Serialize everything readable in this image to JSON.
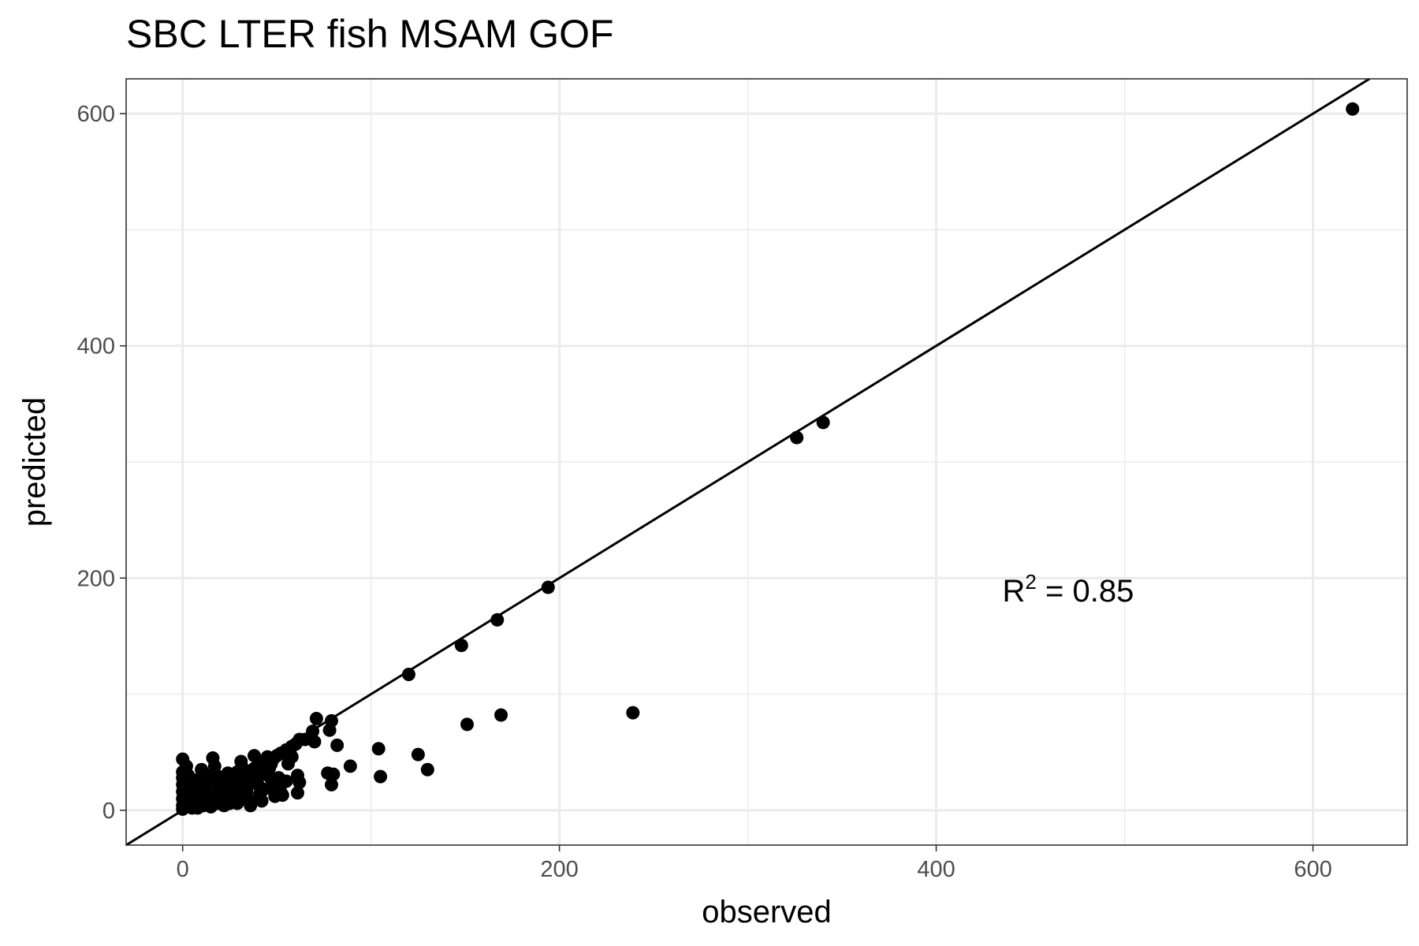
{
  "chart_data": {
    "type": "scatter",
    "title": "SBC LTER fish MSAM GOF",
    "xlabel": "observed",
    "ylabel": "predicted",
    "xlim": [
      -30,
      650
    ],
    "ylim": [
      -30,
      630
    ],
    "xticks": [
      0,
      200,
      400,
      600
    ],
    "yticks": [
      0,
      200,
      400,
      600
    ],
    "xtick_labels": [
      "0",
      "200",
      "400",
      "600"
    ],
    "ytick_labels": [
      "0",
      "200",
      "400",
      "600"
    ],
    "minor_grid_x": [
      100,
      300,
      500
    ],
    "minor_grid_y": [
      100,
      300,
      500
    ],
    "grid": true,
    "reference_line": {
      "type": "identity",
      "intercept": 0,
      "slope": 1
    },
    "annotation": {
      "text_base": "R",
      "superscript": "2",
      "text_rest": " = 0.85",
      "x": 500,
      "y": 190
    },
    "colors": {
      "points": "#000000",
      "grid": "#ebebeb",
      "line": "#000000"
    },
    "points": [
      [
        621,
        604
      ],
      [
        340,
        334
      ],
      [
        326,
        321
      ],
      [
        194,
        192
      ],
      [
        167,
        164
      ],
      [
        148,
        142
      ],
      [
        120,
        117
      ],
      [
        239,
        84
      ],
      [
        169,
        82
      ],
      [
        151,
        74
      ],
      [
        104,
        53
      ],
      [
        125,
        48
      ],
      [
        130,
        35
      ],
      [
        105,
        29
      ],
      [
        89,
        38
      ],
      [
        82,
        56
      ],
      [
        79,
        77
      ],
      [
        78,
        69
      ],
      [
        71,
        79
      ],
      [
        69,
        68
      ],
      [
        70,
        59
      ],
      [
        65,
        61
      ],
      [
        62,
        61
      ],
      [
        60,
        57
      ],
      [
        58,
        55
      ],
      [
        55,
        52
      ],
      [
        52,
        49
      ],
      [
        50,
        47
      ],
      [
        48,
        44
      ],
      [
        45,
        42
      ],
      [
        42,
        40
      ],
      [
        40,
        38
      ],
      [
        38,
        36
      ],
      [
        35,
        33
      ],
      [
        32,
        30
      ],
      [
        30,
        28
      ],
      [
        27,
        26
      ],
      [
        25,
        24
      ],
      [
        22,
        21
      ],
      [
        20,
        19
      ],
      [
        17,
        16
      ],
      [
        15,
        14
      ],
      [
        12,
        12
      ],
      [
        10,
        10
      ],
      [
        8,
        8
      ],
      [
        5,
        5
      ],
      [
        3,
        3
      ],
      [
        0,
        44
      ],
      [
        0,
        33
      ],
      [
        0,
        28
      ],
      [
        0,
        22
      ],
      [
        0,
        16
      ],
      [
        0,
        10
      ],
      [
        0,
        4
      ],
      [
        0,
        1
      ],
      [
        2,
        38
      ],
      [
        3,
        30
      ],
      [
        4,
        25
      ],
      [
        5,
        18
      ],
      [
        6,
        12
      ],
      [
        7,
        6
      ],
      [
        8,
        2
      ],
      [
        10,
        35
      ],
      [
        11,
        28
      ],
      [
        12,
        20
      ],
      [
        13,
        14
      ],
      [
        14,
        8
      ],
      [
        15,
        3
      ],
      [
        16,
        45
      ],
      [
        17,
        38
      ],
      [
        18,
        30
      ],
      [
        19,
        22
      ],
      [
        20,
        15
      ],
      [
        21,
        9
      ],
      [
        22,
        4
      ],
      [
        24,
        32
      ],
      [
        26,
        25
      ],
      [
        27,
        18
      ],
      [
        28,
        11
      ],
      [
        29,
        6
      ],
      [
        31,
        42
      ],
      [
        32,
        36
      ],
      [
        33,
        24
      ],
      [
        34,
        16
      ],
      [
        35,
        9
      ],
      [
        36,
        4
      ],
      [
        38,
        47
      ],
      [
        39,
        32
      ],
      [
        40,
        22
      ],
      [
        41,
        14
      ],
      [
        42,
        8
      ],
      [
        45,
        46
      ],
      [
        46,
        36
      ],
      [
        47,
        27
      ],
      [
        48,
        18
      ],
      [
        49,
        12
      ],
      [
        52,
        16
      ],
      [
        53,
        13
      ],
      [
        55,
        25
      ],
      [
        58,
        46
      ],
      [
        61,
        30
      ],
      [
        61,
        15
      ],
      [
        62,
        24
      ],
      [
        79,
        22
      ],
      [
        80,
        31
      ],
      [
        77,
        32
      ],
      [
        1,
        8
      ],
      [
        2,
        14
      ],
      [
        4,
        20
      ],
      [
        6,
        26
      ],
      [
        9,
        17
      ],
      [
        11,
        4
      ],
      [
        13,
        26
      ],
      [
        18,
        12
      ],
      [
        23,
        27
      ],
      [
        25,
        6
      ],
      [
        30,
        19
      ],
      [
        33,
        12
      ],
      [
        37,
        26
      ],
      [
        43,
        18
      ],
      [
        44,
        31
      ],
      [
        50,
        22
      ],
      [
        1,
        5
      ],
      [
        3,
        9
      ],
      [
        5,
        2
      ],
      [
        7,
        15
      ],
      [
        9,
        24
      ],
      [
        14,
        30
      ],
      [
        19,
        6
      ],
      [
        21,
        28
      ],
      [
        26,
        14
      ],
      [
        29,
        33
      ],
      [
        34,
        22
      ],
      [
        36,
        30
      ],
      [
        41,
        10
      ],
      [
        47,
        40
      ],
      [
        51,
        28
      ],
      [
        56,
        40
      ]
    ]
  }
}
